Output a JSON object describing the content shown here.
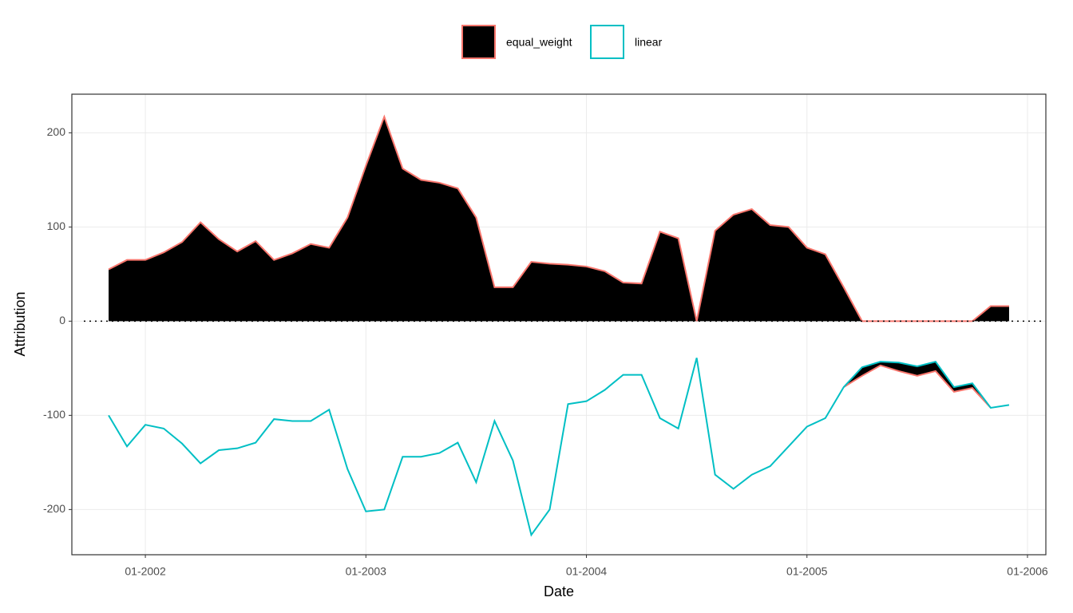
{
  "chart_data": {
    "type": "area",
    "x_label": "Date",
    "y_label": "Attribution",
    "x": [
      "2001-11",
      "2001-12",
      "2002-01",
      "2002-02",
      "2002-03",
      "2002-04",
      "2002-05",
      "2002-06",
      "2002-07",
      "2002-08",
      "2002-09",
      "2002-10",
      "2002-11",
      "2002-12",
      "2003-01",
      "2003-02",
      "2003-03",
      "2003-04",
      "2003-05",
      "2003-06",
      "2003-07",
      "2003-08",
      "2003-09",
      "2003-10",
      "2003-11",
      "2003-12",
      "2004-01",
      "2004-02",
      "2004-03",
      "2004-04",
      "2004-05",
      "2004-06",
      "2004-07",
      "2004-08",
      "2004-09",
      "2004-10",
      "2004-11",
      "2004-12",
      "2005-01",
      "2005-02",
      "2005-03",
      "2005-04",
      "2005-05",
      "2005-06",
      "2005-07",
      "2005-08",
      "2005-09",
      "2005-10",
      "2005-11",
      "2005-12"
    ],
    "series": [
      {
        "name": "equal_weight",
        "color": "#f8766d",
        "fill": "#000000",
        "values": [
          55,
          65,
          65,
          73,
          84,
          105,
          87,
          74,
          85,
          65,
          72,
          82,
          78,
          110,
          165,
          217,
          162,
          150,
          147,
          141,
          110,
          36,
          36,
          63,
          61,
          60,
          58,
          53,
          41,
          40,
          95,
          88,
          0,
          96,
          113,
          119,
          102,
          100,
          78,
          71,
          36,
          0,
          0,
          0,
          0,
          0,
          0,
          0,
          16,
          16
        ],
        "lower_values": [
          null,
          null,
          null,
          null,
          null,
          null,
          null,
          null,
          null,
          null,
          null,
          null,
          null,
          null,
          null,
          null,
          null,
          null,
          null,
          null,
          null,
          null,
          null,
          null,
          null,
          null,
          null,
          null,
          null,
          null,
          null,
          null,
          null,
          null,
          null,
          null,
          null,
          null,
          null,
          null,
          -70,
          -58,
          -47,
          -53,
          -58,
          -53,
          -75,
          -71,
          -92,
          null
        ]
      },
      {
        "name": "linear",
        "color": "#00bfc4",
        "values": [
          -100,
          -133,
          -110,
          -114,
          -130,
          -151,
          -137,
          -135,
          -129,
          -104,
          -106,
          -106,
          -94,
          -157,
          -202,
          -200,
          -144,
          -144,
          -140,
          -129,
          -171,
          -106,
          -148,
          -227,
          -200,
          -88,
          -85,
          -73,
          -57,
          -57,
          -103,
          -114,
          -39,
          -163,
          -178,
          -163,
          -154,
          -133,
          -112,
          -103,
          -70,
          -49,
          -43,
          -44,
          -48,
          -43,
          -70,
          -66,
          -92,
          -89
        ]
      }
    ],
    "xlim": [
      "2001-09",
      "2006-02"
    ],
    "xticks": [
      {
        "value": "2002-01",
        "label": "01-2002"
      },
      {
        "value": "2003-01",
        "label": "01-2003"
      },
      {
        "value": "2004-01",
        "label": "01-2004"
      },
      {
        "value": "2005-01",
        "label": "01-2005"
      },
      {
        "value": "2006-01",
        "label": "01-2006"
      }
    ],
    "ylim": [
      -248,
      241
    ],
    "yticks": [
      -200,
      -100,
      0,
      100,
      200
    ],
    "reference_line": 0,
    "grid": true,
    "legend": "top"
  }
}
